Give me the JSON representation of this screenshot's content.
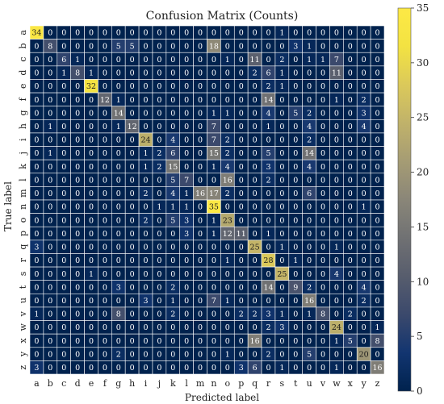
{
  "chart_data": {
    "type": "heatmap",
    "title": "Confusion Matrix (Counts)",
    "xlabel": "Predicted label",
    "ylabel": "True label",
    "x_categories": [
      "a",
      "b",
      "c",
      "d",
      "e",
      "f",
      "g",
      "h",
      "i",
      "j",
      "k",
      "l",
      "m",
      "n",
      "o",
      "p",
      "q",
      "r",
      "s",
      "t",
      "u",
      "v",
      "w",
      "x",
      "y",
      "z"
    ],
    "y_categories": [
      "a",
      "b",
      "c",
      "d",
      "e",
      "f",
      "g",
      "h",
      "i",
      "j",
      "k",
      "l",
      "m",
      "n",
      "o",
      "p",
      "q",
      "r",
      "s",
      "t",
      "u",
      "v",
      "w",
      "x",
      "y",
      "z"
    ],
    "matrix": [
      [
        34,
        0,
        0,
        0,
        0,
        0,
        0,
        0,
        0,
        0,
        0,
        0,
        0,
        0,
        0,
        0,
        0,
        0,
        1,
        0,
        0,
        0,
        0,
        0,
        0,
        0
      ],
      [
        0,
        8,
        0,
        0,
        0,
        0,
        5,
        5,
        0,
        0,
        0,
        0,
        0,
        18,
        0,
        0,
        0,
        0,
        0,
        3,
        1,
        0,
        0,
        0,
        0,
        0
      ],
      [
        0,
        0,
        6,
        1,
        0,
        0,
        0,
        0,
        0,
        0,
        0,
        0,
        0,
        0,
        1,
        0,
        11,
        0,
        2,
        0,
        1,
        1,
        7,
        0,
        0,
        0
      ],
      [
        0,
        0,
        1,
        8,
        1,
        0,
        0,
        0,
        0,
        0,
        0,
        0,
        0,
        0,
        0,
        0,
        2,
        6,
        1,
        0,
        0,
        0,
        11,
        0,
        0,
        0
      ],
      [
        0,
        0,
        0,
        0,
        32,
        0,
        0,
        0,
        0,
        0,
        0,
        0,
        0,
        0,
        0,
        0,
        0,
        2,
        1,
        0,
        0,
        0,
        0,
        0,
        0,
        0
      ],
      [
        0,
        0,
        0,
        0,
        0,
        12,
        1,
        0,
        0,
        0,
        0,
        0,
        0,
        0,
        0,
        0,
        0,
        14,
        0,
        0,
        0,
        0,
        1,
        0,
        2,
        0
      ],
      [
        0,
        0,
        0,
        0,
        0,
        0,
        14,
        0,
        0,
        0,
        0,
        0,
        0,
        1,
        1,
        0,
        0,
        4,
        0,
        5,
        2,
        0,
        0,
        0,
        3,
        0
      ],
      [
        0,
        1,
        0,
        0,
        0,
        0,
        1,
        12,
        0,
        0,
        0,
        0,
        0,
        7,
        0,
        0,
        0,
        1,
        0,
        0,
        4,
        0,
        0,
        0,
        4,
        0
      ],
      [
        0,
        0,
        0,
        0,
        0,
        0,
        0,
        0,
        24,
        0,
        4,
        0,
        0,
        7,
        2,
        0,
        0,
        0,
        0,
        0,
        2,
        0,
        0,
        0,
        0,
        0
      ],
      [
        0,
        1,
        0,
        0,
        0,
        0,
        0,
        0,
        1,
        2,
        6,
        0,
        0,
        15,
        2,
        0,
        0,
        5,
        0,
        0,
        14,
        0,
        0,
        0,
        0,
        0
      ],
      [
        0,
        0,
        0,
        0,
        0,
        0,
        0,
        0,
        1,
        2,
        15,
        0,
        0,
        1,
        4,
        0,
        0,
        3,
        0,
        0,
        4,
        0,
        0,
        0,
        0,
        0
      ],
      [
        0,
        0,
        0,
        0,
        0,
        0,
        0,
        0,
        0,
        0,
        5,
        7,
        0,
        0,
        16,
        0,
        0,
        2,
        0,
        0,
        0,
        0,
        0,
        0,
        0,
        0
      ],
      [
        0,
        0,
        0,
        0,
        0,
        0,
        0,
        0,
        2,
        0,
        4,
        1,
        16,
        17,
        2,
        0,
        0,
        0,
        0,
        0,
        6,
        0,
        0,
        0,
        0,
        0
      ],
      [
        0,
        0,
        0,
        0,
        0,
        0,
        0,
        0,
        0,
        1,
        1,
        1,
        0,
        35,
        0,
        0,
        0,
        0,
        0,
        0,
        0,
        0,
        0,
        0,
        1,
        0
      ],
      [
        0,
        0,
        0,
        0,
        0,
        0,
        0,
        0,
        2,
        0,
        5,
        3,
        0,
        1,
        23,
        0,
        0,
        0,
        0,
        0,
        0,
        0,
        0,
        0,
        0,
        0
      ],
      [
        0,
        0,
        0,
        0,
        0,
        0,
        0,
        0,
        0,
        0,
        0,
        3,
        0,
        1,
        12,
        11,
        0,
        1,
        0,
        0,
        0,
        0,
        0,
        0,
        0,
        0
      ],
      [
        3,
        0,
        0,
        0,
        0,
        0,
        0,
        0,
        0,
        0,
        0,
        0,
        0,
        0,
        0,
        0,
        25,
        0,
        1,
        0,
        0,
        0,
        1,
        0,
        0,
        0
      ],
      [
        0,
        0,
        0,
        0,
        0,
        0,
        0,
        0,
        0,
        0,
        0,
        0,
        0,
        0,
        1,
        0,
        0,
        28,
        0,
        1,
        0,
        0,
        0,
        0,
        0,
        0
      ],
      [
        0,
        0,
        0,
        0,
        1,
        0,
        0,
        0,
        0,
        0,
        0,
        0,
        0,
        0,
        0,
        0,
        0,
        0,
        25,
        0,
        0,
        0,
        4,
        0,
        0,
        0
      ],
      [
        0,
        0,
        0,
        0,
        0,
        0,
        3,
        0,
        0,
        0,
        2,
        0,
        0,
        0,
        0,
        0,
        0,
        14,
        0,
        9,
        2,
        0,
        0,
        0,
        4,
        0
      ],
      [
        0,
        0,
        0,
        0,
        0,
        0,
        0,
        0,
        3,
        0,
        1,
        0,
        0,
        7,
        1,
        0,
        0,
        0,
        0,
        0,
        16,
        0,
        0,
        0,
        2,
        0
      ],
      [
        1,
        0,
        0,
        0,
        0,
        0,
        8,
        0,
        0,
        0,
        2,
        0,
        0,
        0,
        0,
        2,
        2,
        3,
        1,
        0,
        1,
        8,
        0,
        2,
        0,
        0
      ],
      [
        0,
        0,
        0,
        0,
        0,
        0,
        0,
        0,
        0,
        0,
        0,
        0,
        0,
        0,
        0,
        0,
        0,
        2,
        3,
        0,
        0,
        0,
        24,
        0,
        0,
        1
      ],
      [
        0,
        0,
        0,
        0,
        0,
        0,
        0,
        0,
        0,
        0,
        0,
        0,
        0,
        0,
        0,
        0,
        16,
        0,
        0,
        0,
        0,
        0,
        1,
        5,
        0,
        8
      ],
      [
        0,
        0,
        0,
        0,
        0,
        0,
        2,
        0,
        0,
        0,
        0,
        0,
        0,
        0,
        1,
        0,
        0,
        2,
        0,
        0,
        5,
        0,
        0,
        0,
        20,
        0
      ],
      [
        3,
        0,
        0,
        0,
        0,
        0,
        0,
        0,
        0,
        0,
        0,
        0,
        0,
        0,
        0,
        3,
        6,
        0,
        1,
        0,
        0,
        0,
        1,
        0,
        0,
        16
      ]
    ],
    "colormap": "cividis",
    "colorbar": {
      "min": 0,
      "max": 35,
      "ticks": [
        0,
        5,
        10,
        15,
        20,
        25,
        30,
        35
      ]
    },
    "grid": true,
    "legend": "right"
  }
}
